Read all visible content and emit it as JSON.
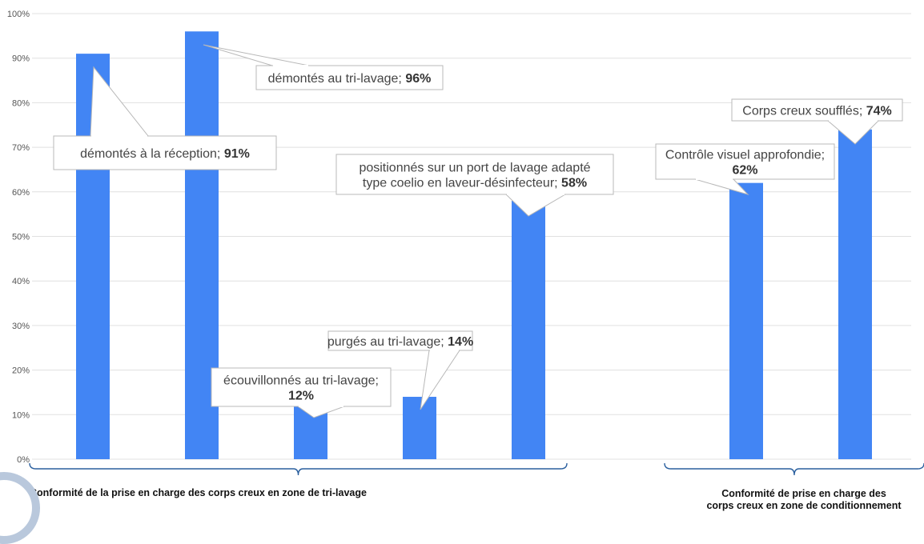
{
  "chart_data": {
    "type": "bar",
    "categories": [
      "démontés à la réception",
      "démontés au tri-lavage",
      "écouvillonnés au tri-lavage",
      "purgés au tri-lavage",
      "positionnés sur un port de lavage adapté type coelio en laveur-désinfecteur",
      "Contrôle visuel approfondie",
      "Corps creux soufflés"
    ],
    "values": [
      91,
      96,
      12,
      14,
      58,
      62,
      74
    ],
    "callouts": [
      {
        "lines": [
          "démontés à la réception; "
        ],
        "value": "91%"
      },
      {
        "lines": [
          "démontés au tri-lavage; "
        ],
        "value": "96%"
      },
      {
        "lines": [
          "écouvillonnés au tri-lavage;"
        ],
        "value": "12%"
      },
      {
        "lines": [
          "purgés au tri-lavage; "
        ],
        "value": "14%"
      },
      {
        "lines": [
          "positionnés sur un port de lavage adapté",
          "type coelio en laveur-désinfecteur; "
        ],
        "value": "58%"
      },
      {
        "lines": [
          "Contrôle visuel approfondie;"
        ],
        "value": "62%"
      },
      {
        "lines": [
          "Corps creux soufflés; "
        ],
        "value": "74%"
      }
    ],
    "yticks": [
      "0%",
      "10%",
      "20%",
      "30%",
      "40%",
      "50%",
      "60%",
      "70%",
      "80%",
      "90%",
      "100%"
    ],
    "ylim": [
      0,
      100
    ],
    "grid": true,
    "bar_color": "#4285f4",
    "groups": [
      {
        "label_lines": [
          "Conformité de la prise en charge des corps creux en zone de tri-lavage"
        ]
      },
      {
        "label_lines": [
          "Conformité de prise en charge des",
          "corps creux en zone de conditionnement"
        ]
      }
    ]
  }
}
